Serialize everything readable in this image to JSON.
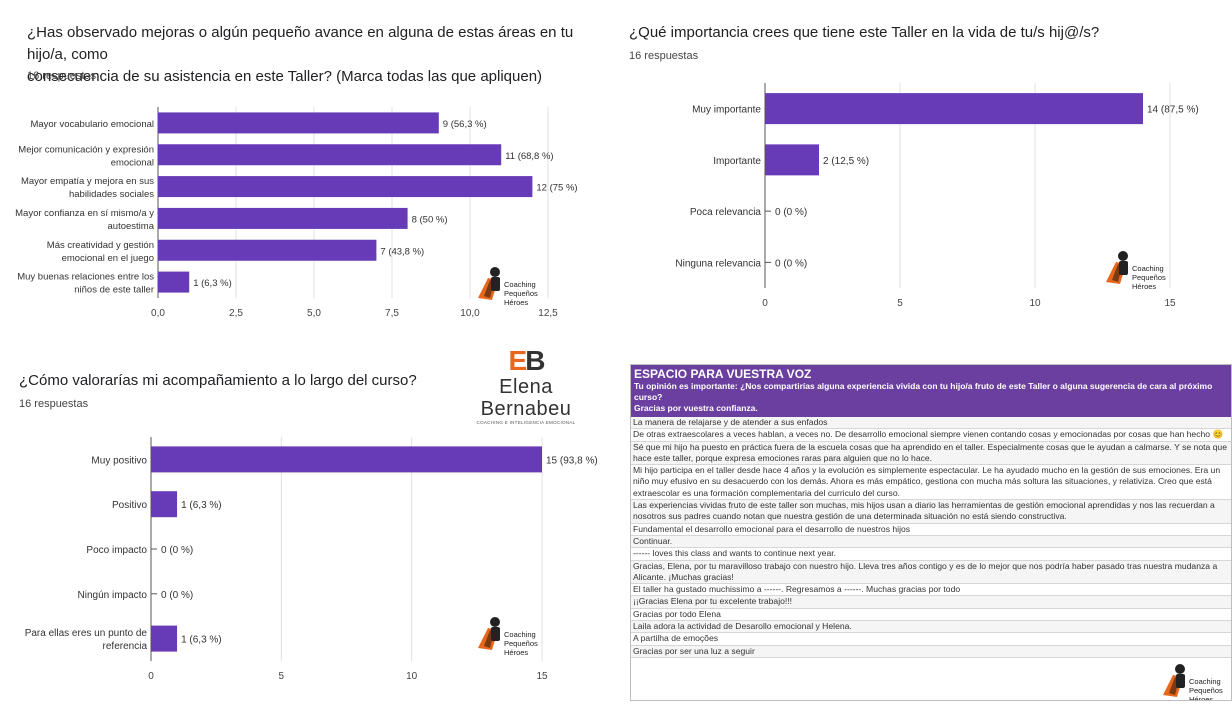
{
  "chart_data": [
    {
      "type": "bar",
      "orientation": "horizontal",
      "title": "¿Has observado mejoras o algún pequeño avance en alguna de estas áreas en tu hijo/a, como consecuencia de su asistencia en este Taller? (Marca todas las que apliquen)",
      "title_lines": [
        "¿Has observado mejoras o algún pequeño avance en alguna de estas áreas en tu hijo/a, como",
        "consecuencia de su asistencia en este Taller? (Marca todas las que apliquen)"
      ],
      "responses": "16 respuestas",
      "categories": [
        [
          "Mayor vocabulario emocional"
        ],
        [
          "Mejor comunicación y expresión",
          "emocional"
        ],
        [
          "Mayor empatía y mejora en sus",
          "habilidades sociales"
        ],
        [
          "Mayor confianza en sí mismo/a y",
          "autoestima"
        ],
        [
          "Más creatividad y gestión",
          "emocional en el juego"
        ],
        [
          "Muy buenas relaciones entre los",
          "niños de este taller"
        ]
      ],
      "values": [
        9,
        11,
        12,
        8,
        7,
        1
      ],
      "labels": [
        "9 (56,3 %)",
        "11 (68,8 %)",
        "12 (75 %)",
        "8 (50 %)",
        "7 (43,8 %)",
        "1 (6,3 %)"
      ],
      "ticks": [
        "0,0",
        "2,5",
        "5,0",
        "7,5",
        "10,0",
        "12,5"
      ],
      "xlim": [
        0,
        12.5
      ],
      "color": "#673ab7",
      "grid": true
    },
    {
      "type": "bar",
      "orientation": "horizontal",
      "title": "¿Qué importancia crees que tiene este Taller en la vida de tu/s hij@/s?",
      "title_lines": [
        "¿Qué importancia crees que tiene este Taller en la vida de tu/s hij@/s?"
      ],
      "responses": "16 respuestas",
      "categories": [
        [
          "Muy importante"
        ],
        [
          "Importante"
        ],
        [
          "Poca relevancia"
        ],
        [
          "Ninguna relevancia"
        ]
      ],
      "values": [
        14,
        2,
        0,
        0
      ],
      "labels": [
        "14 (87,5 %)",
        "2 (12,5 %)",
        "0 (0 %)",
        "0 (0 %)"
      ],
      "ticks": [
        "0",
        "5",
        "10",
        "15"
      ],
      "xlim": [
        0,
        15
      ],
      "color": "#673ab7",
      "grid": true
    },
    {
      "type": "bar",
      "orientation": "horizontal",
      "title": "¿Cómo valorarías mi acompañamiento a lo largo del curso?",
      "title_lines": [
        "¿Cómo valorarías mi acompañamiento a lo largo del curso?"
      ],
      "responses": "16 respuestas",
      "categories": [
        [
          "Muy positivo"
        ],
        [
          "Positivo"
        ],
        [
          "Poco impacto"
        ],
        [
          "Ningún impacto"
        ],
        [
          "Para ellas eres un punto de",
          "referencia"
        ]
      ],
      "values": [
        15,
        1,
        0,
        0,
        1
      ],
      "labels": [
        "15 (93,8 %)",
        "1 (6,3 %)",
        "0 (0 %)",
        "0 (0 %)",
        "1 (6,3 %)"
      ],
      "ticks": [
        "0",
        "5",
        "10",
        "15"
      ],
      "xlim": [
        0,
        15
      ],
      "color": "#673ab7",
      "grid": true
    }
  ],
  "logo": {
    "lines": [
      "Coaching",
      "Pequeños",
      "Héroes"
    ]
  },
  "brand": {
    "mark_left": "E",
    "mark_right": "B",
    "name": "Elena Bernabeu",
    "sub": "COACHING E INTELIGENCIA EMOCIONAL"
  },
  "voice": {
    "title": "ESPACIO PARA VUESTRA VOZ",
    "subtitle": "Tu opinión es importante: ¿Nos compartirías alguna experiencia vivida con tu hijo/a fruto de este Taller o alguna sugerencia de cara al próximo curso?",
    "thanks": "Gracias por vuestra confianza.",
    "rows": [
      "La manera de relajarse y de atender a sus enfados",
      "De otras extraescolares a veces hablan, a veces no. De desarrollo emocional siempre vienen contando cosas y emocionadas por cosas que han hecho 😊",
      "Sé que mi hijo ha puesto en práctica fuera de la escuela cosas que ha aprendido en el taller. Especialmente cosas que le ayudan a calmarse. Y se nota que hace este taller, porque expresa emociones raras para alguien que no lo hace.",
      "Mi hijo participa en el taller desde hace 4 años y la evolución es simplemente espectacular. Le ha ayudado mucho en la gestión de sus emociones. Era un niño muy efusivo en su desacuerdo con los demás. Ahora es más empático, gestiona con mucha más soltura las situaciones, y relativiza. Creo que está extraescolar es una formación complementaria del curriculo del curso.",
      "Las experiencias vividas fruto de este taller son muchas, mis hijos usan a diario las herramientas de gestión emocional aprendidas y nos las recuerdan a nosotros sus padres cuando notan que nuestra gestión de una determinada situación no está siendo constructiva.",
      "Fundamental el desarrollo emocional para el desarrollo de nuestros hijos",
      "Continuar.",
      "------ loves this class and wants to continue next year.",
      "Gracias, Elena, por tu maravilloso trabajo con nuestro hijo. Lleva tres años contigo y es de lo mejor que nos podría haber pasado tras nuestra mudanza a Alicante. ¡Muchas gracias!",
      "El taller ha gustado muchissimo a ------. Regresamos a ------. Muchas gracias por todo",
      "¡¡Gracias Elena por tu excelente trabajo!!!",
      "Gracias por todo Elena",
      "Laila adora la actividad de Desarollo emocional y Helena.",
      "A partilha de emoções",
      "Gracias por ser una luz a seguir"
    ]
  }
}
